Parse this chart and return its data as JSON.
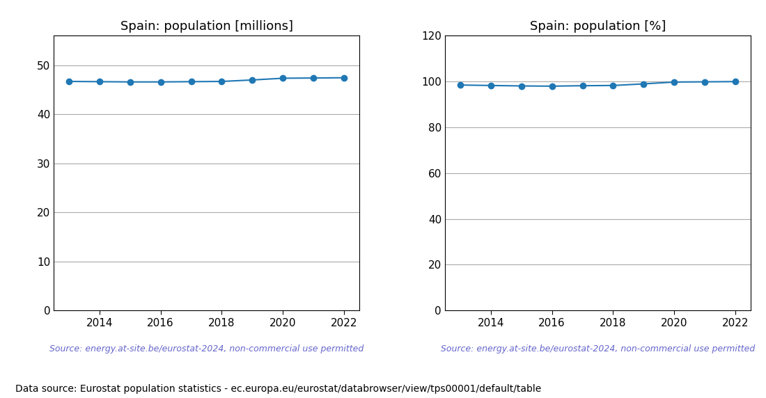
{
  "years": [
    2013,
    2014,
    2015,
    2016,
    2017,
    2018,
    2019,
    2020,
    2021,
    2022
  ],
  "pop_millions": [
    46.7,
    46.65,
    46.6,
    46.6,
    46.65,
    46.7,
    47.0,
    47.35,
    47.4,
    47.45
  ],
  "pop_percent": [
    98.5,
    98.3,
    98.1,
    98.0,
    98.2,
    98.3,
    99.0,
    99.8,
    99.9,
    100.0
  ],
  "title_millions": "Spain: population [millions]",
  "title_percent": "Spain: population [%]",
  "ylim_millions": [
    0,
    56
  ],
  "ylim_percent": [
    0,
    120
  ],
  "yticks_millions": [
    0,
    10,
    20,
    30,
    40,
    50
  ],
  "yticks_percent": [
    0,
    20,
    40,
    60,
    80,
    100,
    120
  ],
  "line_color": "#1f77b4",
  "marker": "o",
  "markersize": 6,
  "source_text": "Source: energy.at-site.be/eurostat-2024, non-commercial use permitted",
  "source_color": "#6666cc",
  "footer_text": "Data source: Eurostat population statistics - ec.europa.eu/eurostat/databrowser/view/tps00001/default/table",
  "footer_color": "#000000",
  "bg_color": "#ffffff",
  "grid_color": "#aaaaaa",
  "title_fontsize": 13,
  "tick_fontsize": 11,
  "source_fontsize": 9,
  "footer_fontsize": 10
}
